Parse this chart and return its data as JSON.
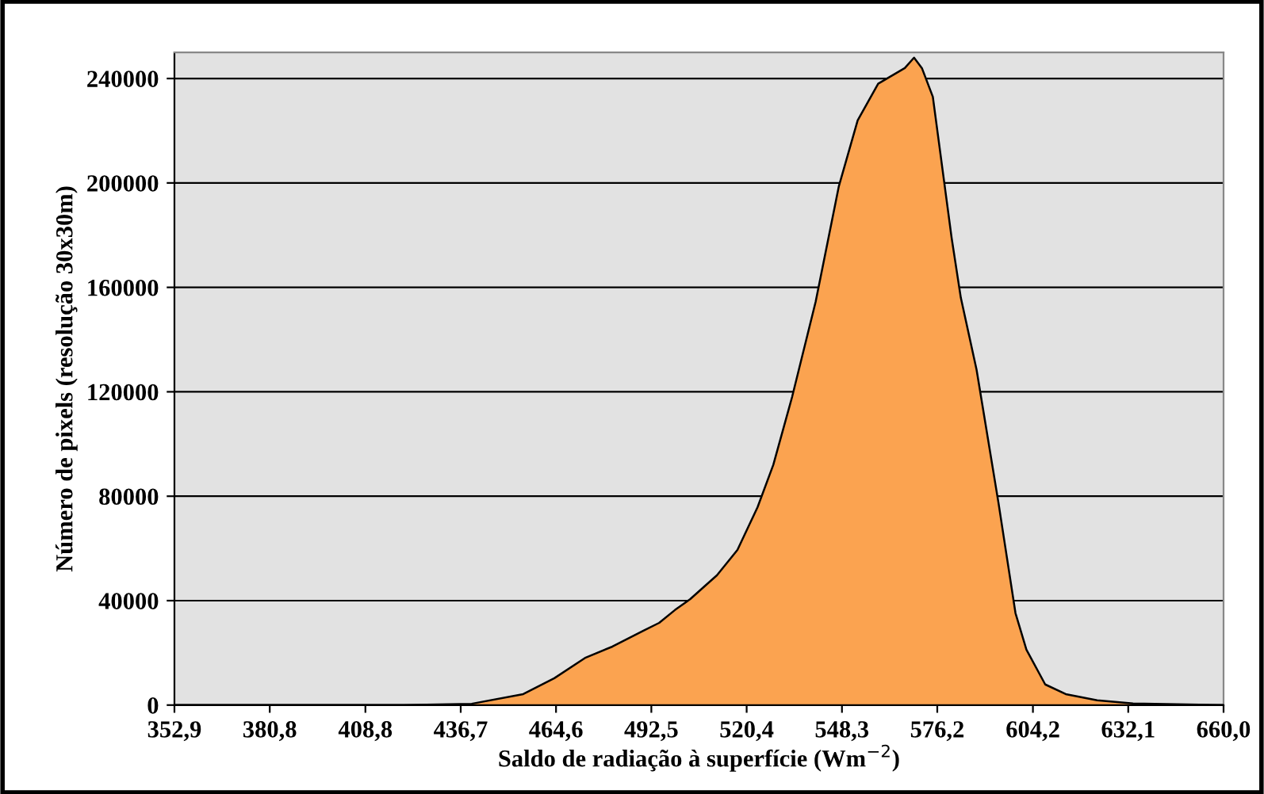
{
  "chart_data": {
    "type": "area",
    "xlabel": "Saldo de radiação à superfície (Wm$^{−2}$)",
    "ylabel": "Número de pixels (resolução 30x30m)",
    "x": [
      352.9,
      380.8,
      420.0,
      439.9,
      455.0,
      464.1,
      473.3,
      481.1,
      490.2,
      494.8,
      499.4,
      503.9,
      508.5,
      511.7,
      517.7,
      523.6,
      528.2,
      533.7,
      540.6,
      547.4,
      552.9,
      558.9,
      566.7,
      569.4,
      571.7,
      574.9,
      580.4,
      583.1,
      587.7,
      594.1,
      599.1,
      602.3,
      607.8,
      613.8,
      623.0,
      633.5,
      660.0
    ],
    "series": [
      {
        "color": "#fba350",
        "values": [
          0,
          0,
          0,
          500,
          4200,
          10300,
          18200,
          22400,
          28500,
          31500,
          36400,
          40600,
          46000,
          49700,
          59400,
          75800,
          92000,
          118000,
          154500,
          198800,
          224000,
          238000,
          244000,
          248000,
          244000,
          233000,
          179000,
          156000,
          128500,
          77600,
          35200,
          21200,
          7900,
          4200,
          1800,
          600,
          0
        ]
      }
    ],
    "xlim": [
      352.9,
      660.0
    ],
    "xticks": [
      {
        "value": 352.9,
        "label": "352,9"
      },
      {
        "value": 380.8,
        "label": "380,8"
      },
      {
        "value": 408.8,
        "label": "408,8"
      },
      {
        "value": 436.7,
        "label": "436,7"
      },
      {
        "value": 464.6,
        "label": "464,6"
      },
      {
        "value": 492.5,
        "label": "492,5"
      },
      {
        "value": 520.4,
        "label": "520,4"
      },
      {
        "value": 548.3,
        "label": "548,3"
      },
      {
        "value": 576.2,
        "label": "576,2"
      },
      {
        "value": 604.2,
        "label": "604,2"
      },
      {
        "value": 632.1,
        "label": "632,1"
      },
      {
        "value": 660.0,
        "label": "660,0"
      }
    ],
    "ylim": [
      0,
      250000
    ],
    "yticks": [
      0,
      40000,
      80000,
      120000,
      160000,
      200000,
      240000
    ],
    "grid": "y"
  }
}
